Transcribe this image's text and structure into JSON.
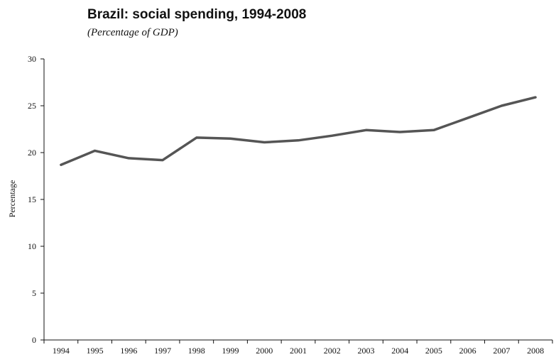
{
  "chart_data": {
    "type": "line",
    "title": "Brazil: social spending, 1994-2008",
    "subtitle": "(Percentage of GDP)",
    "xlabel": "",
    "ylabel": "Percentage",
    "ylim": [
      0,
      30
    ],
    "yticks": [
      "0",
      "5",
      "10",
      "15",
      "20",
      "25",
      "30"
    ],
    "categories": [
      "1994",
      "1995",
      "1996",
      "1997",
      "1998",
      "1999",
      "2000",
      "2001",
      "2002",
      "2003",
      "2004",
      "2005",
      "2006",
      "2007",
      "2008"
    ],
    "series": [
      {
        "values": [
          18.7,
          20.2,
          19.4,
          19.2,
          21.6,
          21.5,
          21.1,
          21.3,
          21.8,
          22.4,
          22.2,
          22.4,
          23.7,
          25.0,
          25.9
        ],
        "color": "#555555"
      }
    ],
    "grid": false,
    "legend": "none"
  }
}
